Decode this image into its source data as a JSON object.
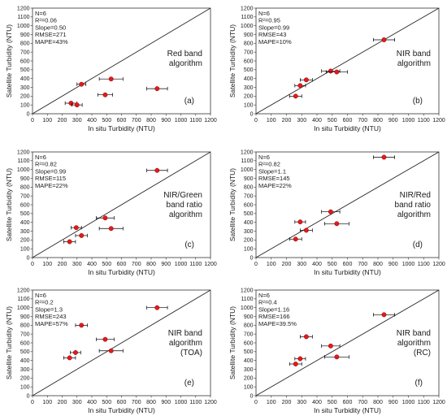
{
  "figure": {
    "x_ticks": [
      "0",
      "100",
      "200",
      "300",
      "400",
      "500",
      "600",
      "700",
      "800",
      "900",
      "1000",
      "1100",
      "1200"
    ],
    "y_ticks": [
      "0",
      "100",
      "200",
      "300",
      "400",
      "500",
      "600",
      "700",
      "800",
      "900",
      "1000",
      "1100",
      "1200"
    ]
  },
  "chart_data": [
    {
      "type": "scatter",
      "panel_label": "(a)",
      "algorithm": [
        "Red band",
        "algorithm"
      ],
      "stats": [
        "N=6",
        "R²=0.06",
        "Slope=0.50",
        "RMSE=271",
        "MAPE=43%"
      ],
      "xlabel": "In situ Turbidity (NTU)",
      "ylabel": "Satellite Turbidity (NTU)",
      "xlim": [
        0,
        1200
      ],
      "ylim": [
        0,
        1200
      ],
      "reference_line": "1:1",
      "points": [
        {
          "x": 260,
          "y": 120,
          "xerr": 40
        },
        {
          "x": 300,
          "y": 100,
          "xerr": 35
        },
        {
          "x": 330,
          "y": 335,
          "xerr": 30
        },
        {
          "x": 490,
          "y": 215,
          "xerr": 50
        },
        {
          "x": 530,
          "y": 395,
          "xerr": 80
        },
        {
          "x": 840,
          "y": 285,
          "xerr": 70
        }
      ]
    },
    {
      "type": "scatter",
      "panel_label": "(b)",
      "algorithm": [
        "NIR band",
        "algorithm"
      ],
      "stats": [
        "N=6",
        "R²=0.95",
        "Slope=0.99",
        "RMSE=43",
        "MAPE=10%"
      ],
      "xlabel": "In situ Turbidity (NTU)",
      "ylabel": "Satellite Turbidity (NTU)",
      "xlim": [
        0,
        1200
      ],
      "ylim": [
        0,
        1200
      ],
      "reference_line": "1:1",
      "points": [
        {
          "x": 260,
          "y": 200,
          "xerr": 40
        },
        {
          "x": 290,
          "y": 320,
          "xerr": 35
        },
        {
          "x": 330,
          "y": 385,
          "xerr": 40
        },
        {
          "x": 490,
          "y": 485,
          "xerr": 60
        },
        {
          "x": 530,
          "y": 475,
          "xerr": 70
        },
        {
          "x": 840,
          "y": 840,
          "xerr": 70
        }
      ]
    },
    {
      "type": "scatter",
      "panel_label": "(c)",
      "algorithm": [
        "NIR/Green",
        "band ratio",
        "algorithm"
      ],
      "stats": [
        "N=6",
        "R²=0.82",
        "Slope=0.99",
        "RMSE=115",
        "MAPE=22%"
      ],
      "xlabel": "In situ Turbidity (NTU)",
      "ylabel": "Satellite Turbidity (NTU)",
      "xlim": [
        0,
        1200
      ],
      "ylim": [
        0,
        1200
      ],
      "reference_line": "1:1",
      "points": [
        {
          "x": 250,
          "y": 180,
          "xerr": 40
        },
        {
          "x": 295,
          "y": 340,
          "xerr": 35
        },
        {
          "x": 330,
          "y": 250,
          "xerr": 40
        },
        {
          "x": 490,
          "y": 450,
          "xerr": 60
        },
        {
          "x": 530,
          "y": 330,
          "xerr": 80
        },
        {
          "x": 840,
          "y": 990,
          "xerr": 70
        }
      ]
    },
    {
      "type": "scatter",
      "panel_label": "(d)",
      "algorithm": [
        "NIR/Red",
        "band ratio",
        "algorithm"
      ],
      "stats": [
        "N=6",
        "R²=0.82",
        "Slope=1.1",
        "RMSE=145",
        "MAPE=22%"
      ],
      "xlabel": "In situ Turbidity (NTU)",
      "ylabel": "Satellite Turbidity (NTU)",
      "xlim": [
        0,
        1200
      ],
      "ylim": [
        0,
        1200
      ],
      "reference_line": "1:1",
      "points": [
        {
          "x": 260,
          "y": 210,
          "xerr": 40
        },
        {
          "x": 290,
          "y": 405,
          "xerr": 35
        },
        {
          "x": 330,
          "y": 310,
          "xerr": 40
        },
        {
          "x": 490,
          "y": 520,
          "xerr": 60
        },
        {
          "x": 530,
          "y": 385,
          "xerr": 80
        },
        {
          "x": 840,
          "y": 1140,
          "xerr": 70
        }
      ]
    },
    {
      "type": "scatter",
      "panel_label": "(e)",
      "algorithm": [
        "NIR band",
        "algorithm",
        "(TOA)"
      ],
      "stats": [
        "N=6",
        "R²=0.2",
        "Slope=1.3",
        "RMSE=243",
        "MAPE=57%"
      ],
      "xlabel": "In situ Turbidity (NTU)",
      "ylabel": "Satellite Turbidity (NTU)",
      "xlim": [
        0,
        1200
      ],
      "ylim": [
        0,
        1200
      ],
      "reference_line": "1:1",
      "points": [
        {
          "x": 250,
          "y": 430,
          "xerr": 40
        },
        {
          "x": 290,
          "y": 490,
          "xerr": 35
        },
        {
          "x": 330,
          "y": 800,
          "xerr": 40
        },
        {
          "x": 490,
          "y": 640,
          "xerr": 60
        },
        {
          "x": 530,
          "y": 510,
          "xerr": 80
        },
        {
          "x": 840,
          "y": 1000,
          "xerr": 70
        }
      ]
    },
    {
      "type": "scatter",
      "panel_label": "(f)",
      "algorithm": [
        "NIR band",
        "algorithm",
        "(RC)"
      ],
      "stats": [
        "N=6",
        "R²=0.4",
        "Slope=1.16",
        "RMSE=166",
        "MAPE=39.5%"
      ],
      "xlabel": "In situ Turbidity (NTU)",
      "ylabel": "Satellite Turbidity (NTU)",
      "xlim": [
        0,
        1200
      ],
      "ylim": [
        0,
        1200
      ],
      "reference_line": "1:1",
      "points": [
        {
          "x": 260,
          "y": 360,
          "xerr": 40
        },
        {
          "x": 290,
          "y": 420,
          "xerr": 35
        },
        {
          "x": 330,
          "y": 670,
          "xerr": 40
        },
        {
          "x": 490,
          "y": 565,
          "xerr": 60
        },
        {
          "x": 530,
          "y": 440,
          "xerr": 80
        },
        {
          "x": 840,
          "y": 920,
          "xerr": 70
        }
      ]
    }
  ],
  "colors": {
    "marker": "#e31a1c",
    "marker_edge": "#8b0000",
    "axis": "#333333",
    "grid_line": "#222222"
  }
}
